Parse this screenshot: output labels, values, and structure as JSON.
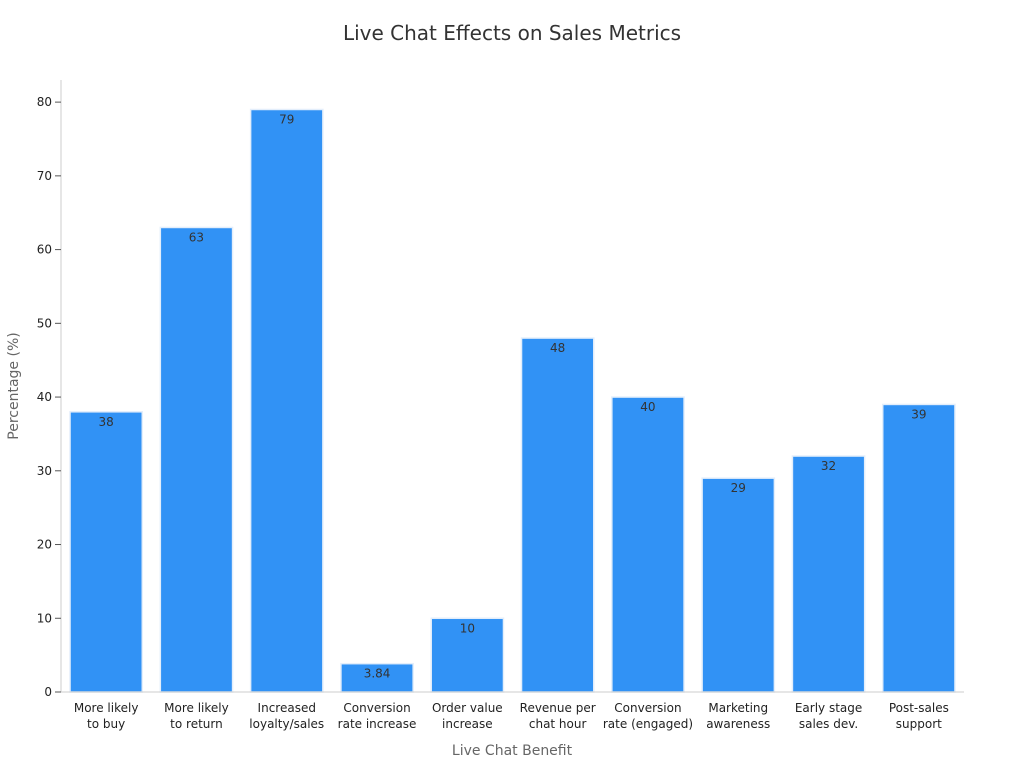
{
  "chart_data": {
    "type": "bar",
    "title": "Live Chat Effects on Sales Metrics",
    "xlabel": "Live Chat Benefit",
    "ylabel": "Percentage (%)",
    "ylim": [
      0,
      83
    ],
    "yticks": [
      0,
      10,
      20,
      30,
      40,
      50,
      60,
      70,
      80
    ],
    "categories": [
      [
        "More likely",
        "to buy"
      ],
      [
        "More likely",
        "to return"
      ],
      [
        "Increased",
        "loyalty/sales"
      ],
      [
        "Conversion",
        "rate increase"
      ],
      [
        "Order value",
        "increase"
      ],
      [
        "Revenue per",
        "chat hour"
      ],
      [
        "Conversion",
        "rate (engaged)"
      ],
      [
        "Marketing",
        "awareness"
      ],
      [
        "Early stage",
        "sales dev."
      ],
      [
        "Post-sales",
        "support"
      ]
    ],
    "values": [
      38,
      63,
      79,
      3.84,
      10,
      48,
      40,
      29,
      32,
      39
    ],
    "data_labels": [
      "38",
      "63",
      "79",
      "3.84",
      "10",
      "48",
      "40",
      "29",
      "32",
      "39"
    ],
    "bar_color": "#3192f5",
    "bar_edge_color": "#e3eefb",
    "grid": false,
    "legend": "none"
  }
}
